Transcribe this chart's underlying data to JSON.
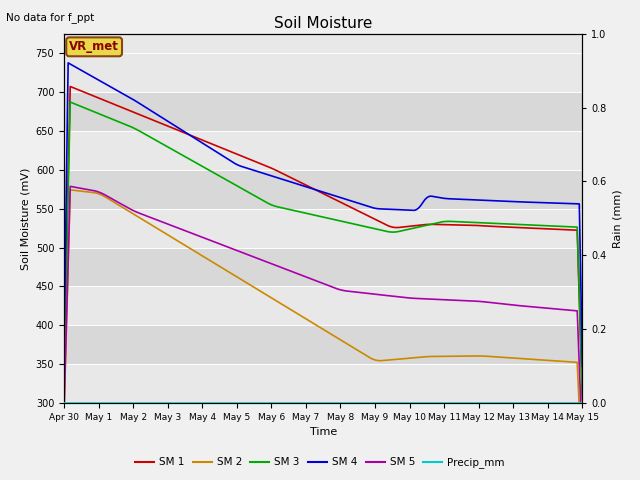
{
  "title": "Soil Moisture",
  "top_left_text": "No data for f_ppt",
  "station_label": "VR_met",
  "ylabel_left": "Soil Moisture (mV)",
  "ylabel_right": "Rain (mm)",
  "xlabel": "Time",
  "ylim_left": [
    300,
    775
  ],
  "ylim_right": [
    0.0,
    1.0
  ],
  "yticks_left": [
    300,
    350,
    400,
    450,
    500,
    550,
    600,
    650,
    700,
    750
  ],
  "yticks_right": [
    0.0,
    0.2,
    0.4,
    0.6,
    0.8,
    1.0
  ],
  "xtick_labels": [
    "Apr 30",
    "May 1",
    "May 2",
    "May 3",
    "May 4",
    "May 5",
    "May 6",
    "May 7",
    "May 8",
    "May 9",
    "May 10",
    "May 11",
    "May 12",
    "May 13",
    "May 14",
    "May 15"
  ],
  "n_points": 500,
  "colors": {
    "SM1": "#cc0000",
    "SM2": "#cc8800",
    "SM3": "#00aa00",
    "SM4": "#0000dd",
    "SM5": "#aa00aa",
    "Precip": "#00cccc"
  },
  "band_colors": [
    "#e8e8e8",
    "#d8d8d8"
  ],
  "background_color": "#f0f0f0",
  "line_width": 1.2,
  "legend_labels": [
    "SM 1",
    "SM 2",
    "SM 3",
    "SM 4",
    "SM 5",
    "Precip_mm"
  ]
}
